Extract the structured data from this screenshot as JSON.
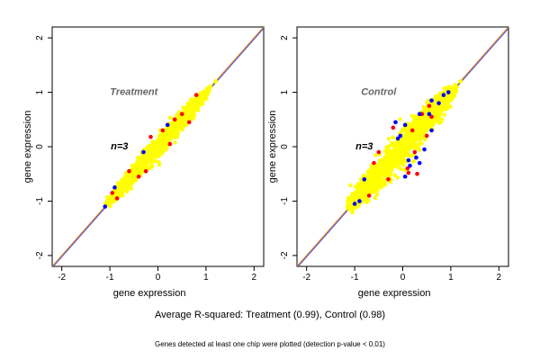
{
  "summary_text": "Average R-squared: Treatment (0.99), Control (0.98)",
  "footnote_text": "Genes detected at least one chip were plotted (detection p-value < 0.01)",
  "colors": {
    "axis": "#000000",
    "diagonal_orange": "#e07a1a",
    "diagonal_blue": "#3355ff",
    "point_yellow": "#ffff00",
    "point_red": "#ff0000",
    "point_blue": "#0000ff",
    "title_gray": "#666666"
  },
  "chart_data": [
    {
      "type": "scatter",
      "title": "Treatment",
      "annotation": "n=3",
      "xlabel": "gene expression",
      "ylabel": "gene expression",
      "xlim": [
        -2.2,
        2.2
      ],
      "ylim": [
        -2.2,
        2.2
      ],
      "xticks": [
        "-2",
        "-1",
        "0",
        "1",
        "2"
      ],
      "yticks": [
        "-2",
        "-1",
        "0",
        "1",
        "2"
      ],
      "grid": false,
      "identity_line": true,
      "cloud": {
        "x_range": [
          -1.1,
          1.2
        ],
        "spread": 0.09
      },
      "series": [
        {
          "color": "yellow",
          "points": [
            [
              -1.05,
              -1.02
            ],
            [
              -0.8,
              -0.74
            ],
            [
              -0.5,
              -0.5
            ],
            [
              0,
              0.02
            ],
            [
              0.5,
              0.48
            ],
            [
              0.9,
              0.92
            ],
            [
              1.2,
              1.2
            ]
          ]
        },
        {
          "color": "red",
          "points": [
            [
              -0.15,
              0.18
            ],
            [
              0.25,
              0.05
            ],
            [
              -0.4,
              -0.55
            ],
            [
              0.5,
              0.6
            ],
            [
              -0.85,
              -0.95
            ],
            [
              0.1,
              0.3
            ],
            [
              0.65,
              0.45
            ],
            [
              -0.6,
              -0.45
            ],
            [
              0.35,
              0.5
            ],
            [
              -0.25,
              -0.45
            ],
            [
              0.8,
              0.95
            ],
            [
              -0.95,
              -0.85
            ]
          ]
        },
        {
          "color": "blue",
          "points": [
            [
              -1.1,
              -1.1
            ],
            [
              -0.9,
              -0.75
            ],
            [
              0.2,
              0.4
            ],
            [
              -0.3,
              -0.1
            ]
          ]
        }
      ]
    },
    {
      "type": "scatter",
      "title": "Control",
      "annotation": "n=3",
      "xlabel": "gene expression",
      "ylabel": "gene expression",
      "xlim": [
        -2.2,
        2.2
      ],
      "ylim": [
        -2.2,
        2.2
      ],
      "xticks": [
        "-2",
        "-1",
        "0",
        "1",
        "2"
      ],
      "yticks": [
        "-2",
        "-1",
        "0",
        "1",
        "2"
      ],
      "grid": false,
      "identity_line": true,
      "cloud": {
        "x_range": [
          -1.2,
          1.2
        ],
        "spread": 0.16
      },
      "series": [
        {
          "color": "yellow",
          "points": [
            [
              -1.15,
              -1.1
            ],
            [
              -0.8,
              -0.85
            ],
            [
              -0.4,
              -0.35
            ],
            [
              0,
              0
            ],
            [
              0.4,
              0.45
            ],
            [
              0.9,
              0.85
            ],
            [
              1.2,
              1.2
            ]
          ]
        },
        {
          "color": "red",
          "points": [
            [
              -0.5,
              -0.1
            ],
            [
              0.1,
              -0.4
            ],
            [
              0.3,
              -0.5
            ],
            [
              -0.2,
              0.35
            ],
            [
              0.5,
              0.2
            ],
            [
              0.6,
              0.55
            ],
            [
              0.12,
              -0.48
            ],
            [
              -0.7,
              -0.9
            ],
            [
              0.2,
              0.3
            ],
            [
              -0.3,
              -0.6
            ],
            [
              0.4,
              0.6
            ],
            [
              0.25,
              -0.1
            ],
            [
              -0.6,
              -0.3
            ],
            [
              0.55,
              0.75
            ]
          ]
        },
        {
          "color": "blue",
          "points": [
            [
              -0.15,
              0.45
            ],
            [
              0.05,
              0.4
            ],
            [
              0.35,
              0.6
            ],
            [
              0.55,
              0.6
            ],
            [
              0.6,
              0.85
            ],
            [
              0.85,
              0.95
            ],
            [
              0.75,
              0.8
            ],
            [
              -0.1,
              0.15
            ],
            [
              0.15,
              -0.35
            ],
            [
              0.28,
              -0.2
            ],
            [
              0.35,
              -0.3
            ],
            [
              0.12,
              -0.25
            ],
            [
              0.05,
              -0.55
            ],
            [
              0.45,
              -0.05
            ],
            [
              -0.9,
              -1.0
            ],
            [
              -1.0,
              -1.05
            ],
            [
              -0.8,
              -0.6
            ],
            [
              -0.05,
              0.2
            ],
            [
              0.6,
              0.3
            ],
            [
              0.95,
              1.0
            ]
          ]
        }
      ]
    }
  ]
}
